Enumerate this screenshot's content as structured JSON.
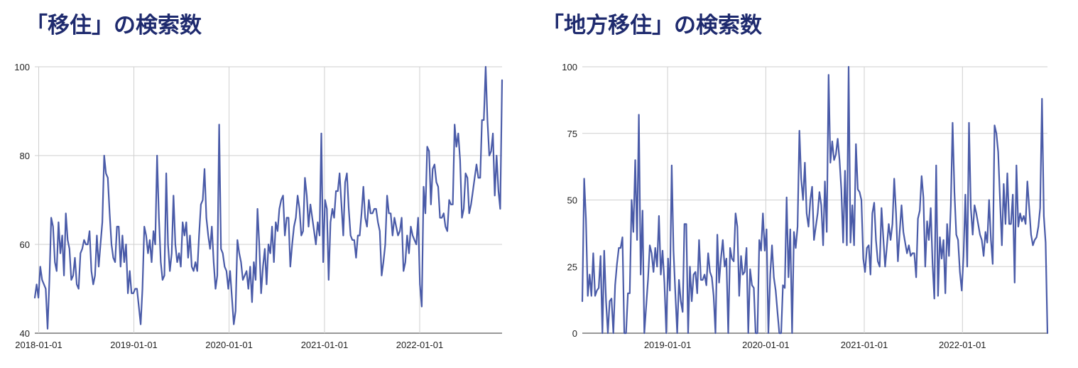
{
  "colors": {
    "series": "#4a5ba8",
    "title": "#1e2a6e",
    "grid": "#cfcfcf"
  },
  "chart_data": [
    {
      "type": "line",
      "title": "「移住」の検索数",
      "xlabel": "",
      "ylabel": "",
      "x_range": [
        "2017-12-17",
        "2022-11-13"
      ],
      "ylim": [
        40,
        100
      ],
      "yticks": [
        40,
        60,
        80,
        100
      ],
      "xticks": [
        "2018-01-01",
        "2019-01-01",
        "2020-01-01",
        "2021-01-01",
        "2022-01-01"
      ],
      "grid": true,
      "legend": "none",
      "series": [
        {
          "values": [
            48,
            51,
            48,
            55,
            52,
            51,
            50,
            41,
            52,
            66,
            64,
            56,
            54,
            65,
            58,
            62,
            53,
            67,
            61,
            59,
            52,
            53,
            57,
            51,
            50,
            58,
            59,
            61,
            60,
            60,
            63,
            54,
            51,
            53,
            62,
            55,
            60,
            65,
            80,
            76,
            75,
            67,
            60,
            57,
            56,
            64,
            64,
            55,
            62,
            56,
            60,
            49,
            54,
            49,
            49,
            50,
            50,
            46,
            42,
            50,
            64,
            62,
            58,
            61,
            56,
            63,
            60,
            80,
            66,
            56,
            52,
            53,
            76,
            60,
            54,
            58,
            71,
            60,
            56,
            58,
            55,
            65,
            62,
            65,
            57,
            62,
            55,
            54,
            56,
            54,
            62,
            69,
            70,
            77,
            66,
            62,
            59,
            64,
            56,
            50,
            53,
            87,
            59,
            58,
            55,
            54,
            50,
            54,
            48,
            42,
            45,
            61,
            58,
            56,
            52,
            53,
            54,
            50,
            55,
            47,
            56,
            52,
            68,
            60,
            49,
            55,
            59,
            51,
            60,
            58,
            64,
            56,
            65,
            63,
            68,
            70,
            71,
            62,
            66,
            66,
            55,
            60,
            64,
            66,
            71,
            68,
            62,
            63,
            75,
            71,
            64,
            69,
            66,
            63,
            60,
            65,
            62,
            85,
            56,
            70,
            68,
            52,
            65,
            68,
            66,
            72,
            72,
            76,
            69,
            62,
            74,
            76,
            68,
            62,
            61,
            61,
            57,
            62,
            62,
            67,
            73,
            66,
            64,
            70,
            67,
            67,
            68,
            68,
            65,
            63,
            53,
            56,
            60,
            71,
            67,
            67,
            62,
            66,
            64,
            62,
            63,
            66,
            54,
            56,
            62,
            58,
            64,
            62,
            61,
            60,
            66,
            51,
            46,
            73,
            67,
            82,
            81,
            69,
            77,
            78,
            74,
            73,
            66,
            66,
            67,
            64,
            63,
            70,
            69,
            69,
            87,
            82,
            85,
            79,
            66,
            68,
            76,
            75,
            67,
            69,
            72,
            75,
            78,
            75,
            75,
            88,
            88,
            100,
            88,
            80,
            81,
            85,
            71,
            80,
            72,
            68,
            97
          ]
        }
      ]
    },
    {
      "type": "line",
      "title": "「地方移住」の検索数",
      "xlabel": "",
      "ylabel": "",
      "x_range": [
        "2018-02-18",
        "2022-11-13"
      ],
      "ylim": [
        0,
        100
      ],
      "yticks": [
        0,
        25,
        50,
        75,
        100
      ],
      "xticks": [
        "2019-01-01",
        "2020-01-01",
        "2021-01-01",
        "2022-01-01"
      ],
      "grid": true,
      "legend": "none",
      "series": [
        {
          "values": [
            12,
            58,
            43,
            14,
            22,
            14,
            30,
            14,
            16,
            17,
            29,
            0,
            31,
            12,
            0,
            12,
            13,
            0,
            18,
            26,
            32,
            32,
            36,
            0,
            0,
            15,
            15,
            50,
            38,
            65,
            35,
            82,
            22,
            46,
            0,
            10,
            20,
            33,
            30,
            23,
            32,
            25,
            44,
            22,
            31,
            19,
            0,
            28,
            16,
            63,
            31,
            15,
            0,
            20,
            12,
            8,
            41,
            41,
            0,
            25,
            12,
            22,
            23,
            15,
            35,
            20,
            20,
            22,
            18,
            30,
            23,
            21,
            14,
            0,
            37,
            19,
            28,
            35,
            25,
            28,
            0,
            32,
            28,
            27,
            45,
            40,
            14,
            29,
            22,
            23,
            32,
            0,
            24,
            18,
            17,
            0,
            0,
            35,
            31,
            45,
            31,
            39,
            0,
            22,
            33,
            21,
            16,
            8,
            0,
            0,
            18,
            17,
            51,
            21,
            39,
            0,
            38,
            32,
            40,
            76,
            58,
            50,
            64,
            45,
            40,
            50,
            55,
            35,
            40,
            45,
            53,
            48,
            33,
            57,
            38,
            97,
            64,
            72,
            65,
            67,
            73,
            65,
            54,
            34,
            61,
            33,
            100,
            34,
            48,
            33,
            71,
            54,
            53,
            50,
            28,
            23,
            32,
            33,
            22,
            45,
            49,
            35,
            27,
            25,
            47,
            36,
            25,
            33,
            41,
            35,
            41,
            58,
            45,
            27,
            38,
            48,
            38,
            34,
            30,
            33,
            29,
            30,
            30,
            21,
            43,
            46,
            59,
            51,
            25,
            42,
            35,
            47,
            26,
            13,
            63,
            14,
            36,
            28,
            35,
            15,
            41,
            29,
            48,
            79,
            53,
            37,
            35,
            23,
            16,
            29,
            52,
            25,
            79,
            47,
            37,
            48,
            45,
            41,
            37,
            35,
            29,
            38,
            34,
            50,
            35,
            26,
            78,
            75,
            68,
            50,
            33,
            56,
            41,
            60,
            41,
            41,
            52,
            19,
            63,
            40,
            45,
            42,
            44,
            41,
            57,
            47,
            37,
            33,
            35,
            36,
            40,
            47,
            88,
            44,
            34,
            0
          ]
        }
      ]
    }
  ]
}
